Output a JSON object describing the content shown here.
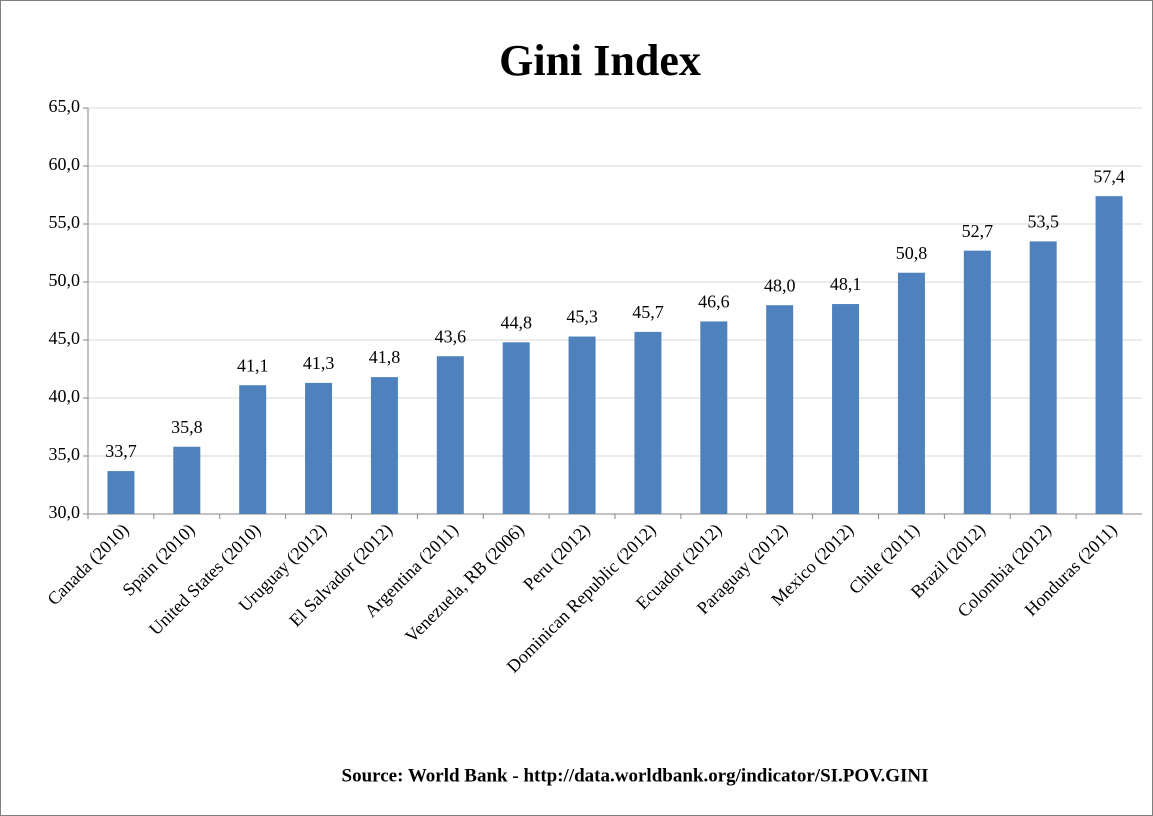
{
  "chart_data": {
    "type": "bar",
    "title": "Gini Index",
    "categories": [
      "Canada (2010)",
      "Spain (2010)",
      "United States (2010)",
      "Uruguay (2012)",
      "El Salvador (2012)",
      "Argentina (2011)",
      "Venezuela, RB (2006)",
      "Peru (2012)",
      "Dominican Republic (2012)",
      "Ecuador (2012)",
      "Paraguay (2012)",
      "Mexico (2012)",
      "Chile (2011)",
      "Brazil (2012)",
      "Colombia (2012)",
      "Honduras (2011)"
    ],
    "values": [
      33.7,
      35.8,
      41.1,
      41.3,
      41.8,
      43.6,
      44.8,
      45.3,
      45.7,
      46.6,
      48.0,
      48.1,
      50.8,
      52.7,
      53.5,
      57.4
    ],
    "value_labels": [
      "33,7",
      "35,8",
      "41,1",
      "41,3",
      "41,8",
      "43,6",
      "44,8",
      "45,3",
      "45,7",
      "46,6",
      "48,0",
      "48,1",
      "50,8",
      "52,7",
      "53,5",
      "57,4"
    ],
    "color": "#4f81bd",
    "ylim": [
      30,
      65
    ],
    "yticks": [
      {
        "value": 30,
        "label": "30,0"
      },
      {
        "value": 35,
        "label": "35,0"
      },
      {
        "value": 40,
        "label": "40,0"
      },
      {
        "value": 45,
        "label": "45,0"
      },
      {
        "value": 50,
        "label": "50,0"
      },
      {
        "value": 55,
        "label": "55,0"
      },
      {
        "value": 60,
        "label": "60,0"
      },
      {
        "value": 65,
        "label": "65,0"
      }
    ],
    "grid": true,
    "source": "Source: World Bank - http://data.worldbank.org/indicator/SI.POV.GINI"
  }
}
